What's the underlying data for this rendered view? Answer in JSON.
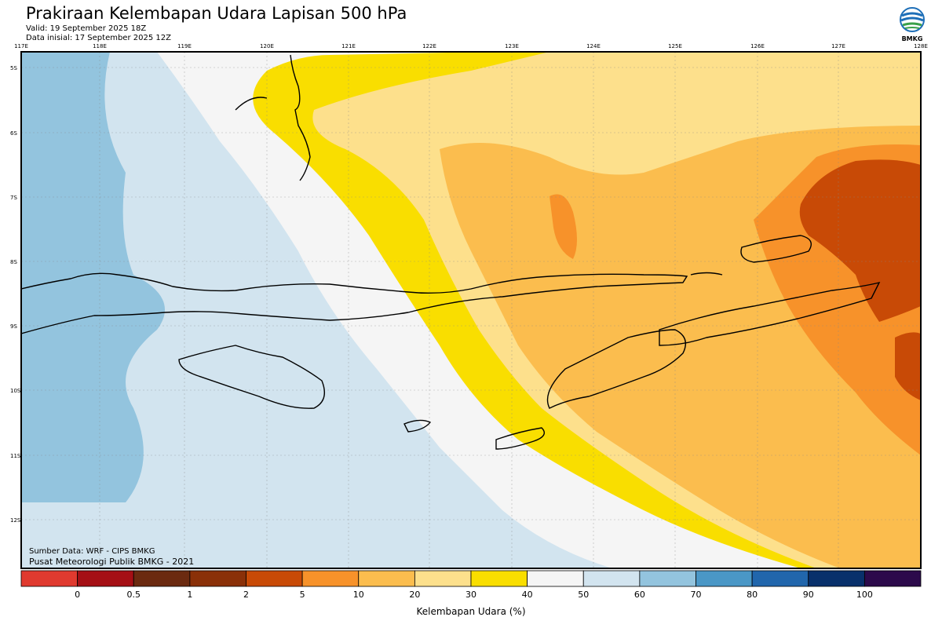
{
  "header": {
    "title": "Prakiraan Kelembapan Udara Lapisan 500 hPa",
    "valid": "Valid: 19 September 2025 18Z",
    "init": "Data inisial: 17 September 2025 12Z"
  },
  "logo": {
    "text": "BMKG"
  },
  "map": {
    "lon_ticks": [
      "117E",
      "118E",
      "119E",
      "120E",
      "121E",
      "122E",
      "123E",
      "124E",
      "125E",
      "126E",
      "127E",
      "128E"
    ],
    "lat_ticks": [
      "5S",
      "6S",
      "7S",
      "8S",
      "9S",
      "10S",
      "11S",
      "12S"
    ]
  },
  "credits": {
    "source": "Sumber Data: WRF - CIPS BMKG",
    "org": "Pusat Meteorologi Publik BMKG - 2021"
  },
  "colorbar": {
    "ticks": [
      "0",
      "0.5",
      "1",
      "2",
      "5",
      "10",
      "20",
      "30",
      "40",
      "50",
      "60",
      "70",
      "80",
      "90",
      "100"
    ],
    "colors": [
      "#e03a2f",
      "#a50f15",
      "#6b2a10",
      "#8a3008",
      "#c84a06",
      "#f7922a",
      "#fbbd4e",
      "#fde08c",
      "#f9de00",
      "#f5f5f5",
      "#d2e4ef",
      "#93c4de",
      "#4a97c6",
      "#2166ac",
      "#08306b",
      "#2c0a4b"
    ],
    "label": "Kelembapan Udara (%)"
  }
}
